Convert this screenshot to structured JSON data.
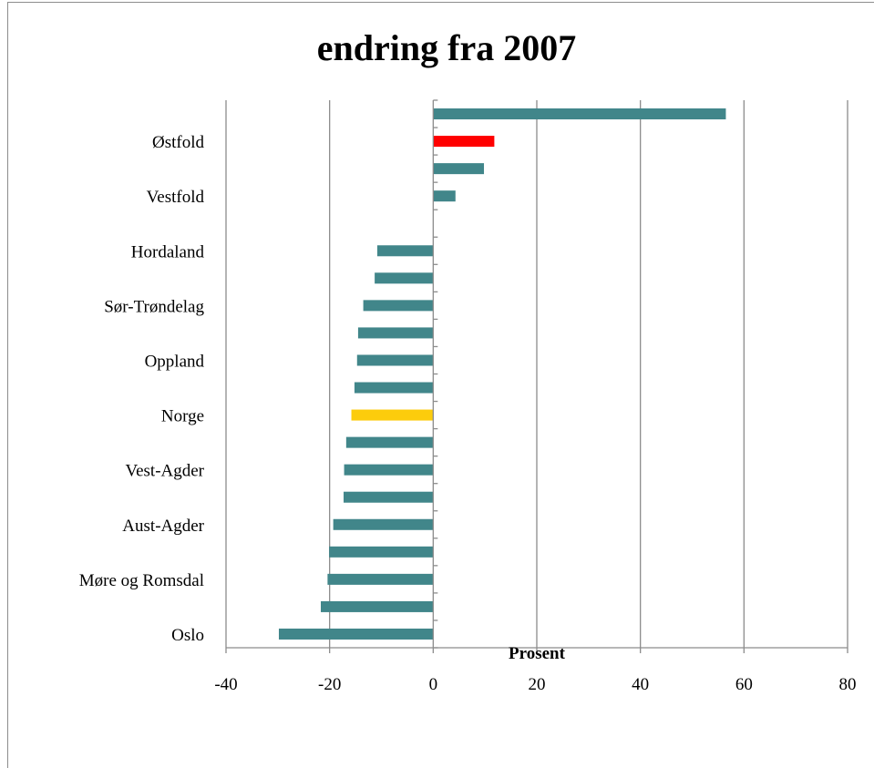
{
  "chart_data": {
    "type": "bar",
    "orientation": "horizontal",
    "title": "endring fra 2007",
    "xlabel": "Prosent",
    "ylabel": "",
    "xlim": [
      -40,
      80
    ],
    "x_ticks": [
      "-40",
      "-20",
      "0",
      "20",
      "40",
      "60",
      "80"
    ],
    "grid": true,
    "legend": "none",
    "categories": [
      "",
      "Østfold",
      "",
      "Vestfold",
      "",
      "Hordaland",
      "",
      "Sør-Trøndelag",
      "",
      "Oppland",
      "",
      "Norge",
      "",
      "Vest-Agder",
      "",
      "Aust-Agder",
      "",
      "Møre og Romsdal",
      "",
      "Oslo"
    ],
    "values": [
      56.5,
      11.8,
      9.8,
      4.3,
      0,
      -10.8,
      -11.3,
      -13.5,
      -14.5,
      -14.7,
      -15.2,
      -15.8,
      -16.8,
      -17.2,
      -17.3,
      -19.3,
      -20.1,
      -20.4,
      -21.7,
      -29.8
    ],
    "colors": [
      "#41868a",
      "#ff0000",
      "#41868a",
      "#41868a",
      "#41868a",
      "#41868a",
      "#41868a",
      "#41868a",
      "#41868a",
      "#41868a",
      "#41868a",
      "#fccc0c",
      "#41868a",
      "#41868a",
      "#41868a",
      "#41868a",
      "#41868a",
      "#41868a",
      "#41868a",
      "#41868a"
    ]
  }
}
